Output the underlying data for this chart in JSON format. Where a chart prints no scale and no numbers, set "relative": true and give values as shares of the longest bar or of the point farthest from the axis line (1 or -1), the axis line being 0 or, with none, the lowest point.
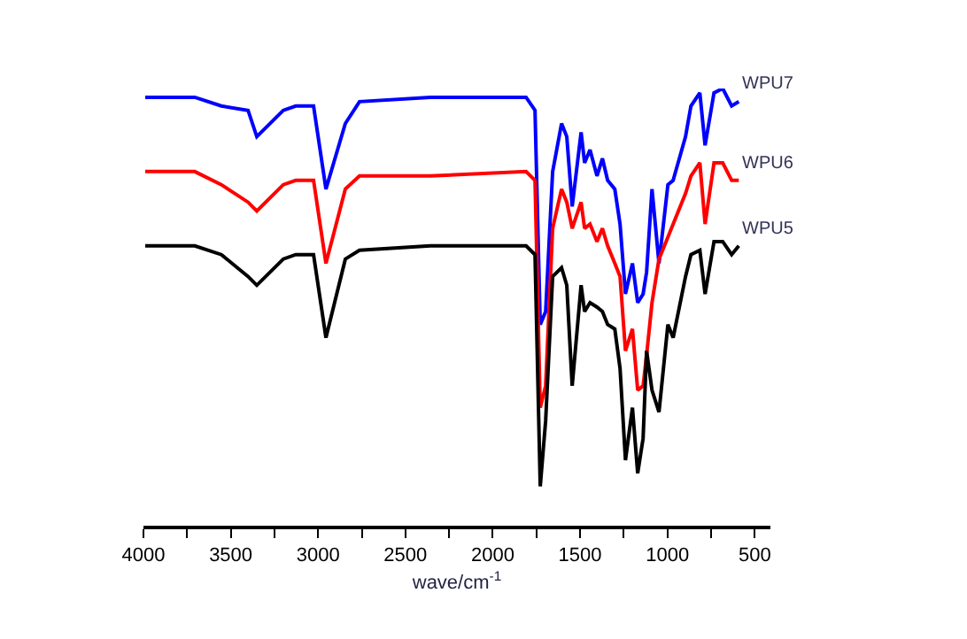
{
  "chart_data": {
    "type": "line",
    "relative": true,
    "xlabel": "wave/cm$^{-1}$",
    "legend": false,
    "xlim": [
      4000,
      410
    ],
    "xticks": [
      4000,
      {
        "value": 3750,
        "label": null
      },
      3500,
      {
        "value": 3250,
        "label": null
      },
      3000,
      {
        "value": 2750,
        "label": null
      },
      2500,
      {
        "value": 2250,
        "label": null
      },
      2000,
      {
        "value": 1750,
        "label": null
      },
      1500,
      {
        "value": 1250,
        "label": null
      },
      1000,
      {
        "value": 750,
        "label": null
      },
      500
    ],
    "x": [
      3990,
      3706,
      3554,
      3401,
      3351,
      3199,
      3128,
      3026,
      2955,
      2844,
      2763,
      2357,
      1809,
      1758,
      1728,
      1697,
      1657,
      1606,
      1576,
      1545,
      1494,
      1474,
      1443,
      1403,
      1372,
      1342,
      1301,
      1271,
      1240,
      1200,
      1170,
      1139,
      1119,
      1088,
      1048,
      997,
      967,
      896,
      865,
      814,
      784,
      733,
      683,
      632,
      591
    ],
    "series": [
      {
        "name": "WPU7",
        "color": "#0000ff",
        "values": [
          0.98,
          0.98,
          0.96,
          0.95,
          0.89,
          0.95,
          0.96,
          0.96,
          0.77,
          0.92,
          0.97,
          0.98,
          0.98,
          0.95,
          0.46,
          0.49,
          0.81,
          0.92,
          0.89,
          0.73,
          0.9,
          0.83,
          0.86,
          0.8,
          0.84,
          0.79,
          0.77,
          0.69,
          0.53,
          0.6,
          0.51,
          0.53,
          0.58,
          0.77,
          0.6,
          0.78,
          0.79,
          0.89,
          0.96,
          0.99,
          0.87,
          0.99,
          1.0,
          0.96,
          0.97
        ]
      },
      {
        "name": "WPU6",
        "color": "#ff0000",
        "values": [
          0.81,
          0.81,
          0.78,
          0.74,
          0.72,
          0.78,
          0.79,
          0.79,
          0.6,
          0.77,
          0.8,
          0.8,
          0.81,
          0.79,
          0.27,
          0.32,
          0.68,
          0.77,
          0.74,
          0.68,
          0.74,
          0.68,
          0.69,
          0.65,
          0.68,
          0.64,
          0.6,
          0.57,
          0.4,
          0.45,
          0.31,
          0.32,
          0.39,
          0.51,
          0.61,
          0.66,
          0.69,
          0.76,
          0.8,
          0.83,
          0.69,
          0.83,
          0.83,
          0.79,
          0.79
        ]
      },
      {
        "name": "WPU5",
        "color": "#000000",
        "values": [
          0.64,
          0.64,
          0.62,
          0.57,
          0.55,
          0.61,
          0.62,
          0.62,
          0.43,
          0.61,
          0.63,
          0.64,
          0.64,
          0.62,
          0.09,
          0.24,
          0.57,
          0.59,
          0.55,
          0.32,
          0.55,
          0.49,
          0.51,
          0.5,
          0.49,
          0.46,
          0.45,
          0.36,
          0.15,
          0.27,
          0.12,
          0.2,
          0.4,
          0.31,
          0.26,
          0.46,
          0.43,
          0.57,
          0.62,
          0.63,
          0.53,
          0.65,
          0.65,
          0.62,
          0.64
        ]
      }
    ]
  }
}
